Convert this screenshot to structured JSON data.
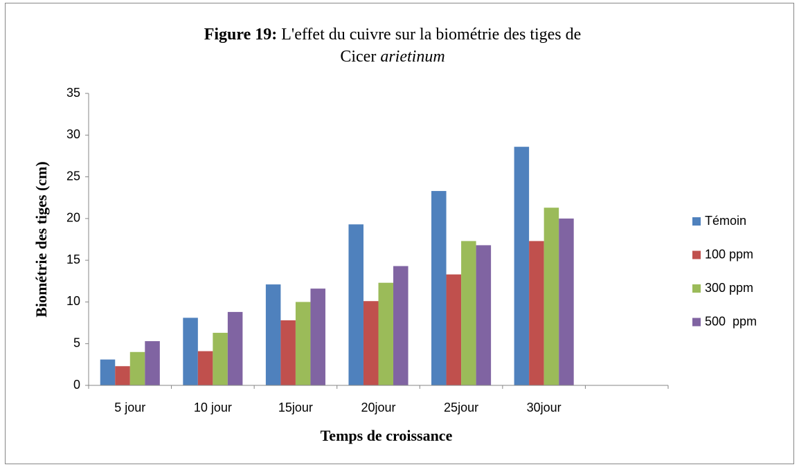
{
  "chart_data": {
    "type": "bar",
    "title": {
      "label": "Figure 19:",
      "text": "L'effet du cuivre sur la biométrie des tiges de",
      "line2": "Cicer",
      "italic": "arietinum"
    },
    "x_label": "Temps de croissance",
    "y_label": "Biométrie des tiges (cm)",
    "categories": [
      "5 jour",
      "10 jour",
      "15jour",
      "20jour",
      "25jour",
      "30jour",
      null
    ],
    "series": [
      {
        "name": "Témoin",
        "color": "#4f81bd",
        "values": [
          3.1,
          8.1,
          12.1,
          19.3,
          23.3,
          28.6,
          null
        ]
      },
      {
        "name": "100 ppm",
        "color": "#c0504d",
        "values": [
          2.3,
          4.1,
          7.8,
          10.1,
          13.3,
          17.3,
          null
        ]
      },
      {
        "name": "300 ppm",
        "color": "#9bbb59",
        "values": [
          4.0,
          6.3,
          10.0,
          12.3,
          17.3,
          21.3,
          null
        ]
      },
      {
        "name": "500  ppm",
        "color": "#8064a2",
        "values": [
          5.3,
          8.8,
          11.6,
          14.3,
          16.8,
          20.0,
          null
        ]
      }
    ],
    "ylim": [
      0,
      35
    ],
    "yticks": [
      0,
      5,
      10,
      15,
      20,
      25,
      30,
      35
    ],
    "grid": false,
    "legend": "right"
  }
}
